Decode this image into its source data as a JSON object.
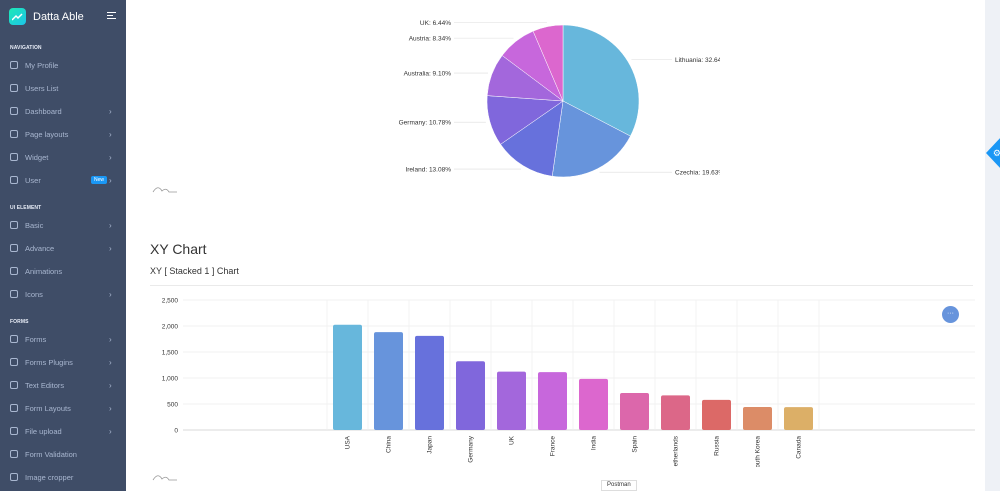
{
  "sidebar": {
    "brand": "Datta Able",
    "sections": [
      {
        "caption": "NAVIGATION",
        "items": [
          {
            "label": "My Profile",
            "icon": "user-icon",
            "chevron": false
          },
          {
            "label": "Users List",
            "icon": "users-icon",
            "chevron": false
          },
          {
            "label": "Dashboard",
            "icon": "home-icon",
            "chevron": true
          },
          {
            "label": "Page layouts",
            "icon": "layout-icon",
            "chevron": true
          },
          {
            "label": "Widget",
            "icon": "layers-icon",
            "chevron": true
          },
          {
            "label": "User",
            "icon": "users-icon",
            "chevron": true,
            "badge": "New"
          }
        ]
      },
      {
        "caption": "UI ELEMENT",
        "items": [
          {
            "label": "Basic",
            "icon": "box-icon",
            "chevron": true
          },
          {
            "label": "Advance",
            "icon": "gitlab-icon",
            "chevron": true
          },
          {
            "label": "Animations",
            "icon": "aperture-icon",
            "chevron": false
          },
          {
            "label": "Icons",
            "icon": "feather-icon",
            "chevron": true
          }
        ]
      },
      {
        "caption": "FORMS",
        "items": [
          {
            "label": "Forms",
            "icon": "file-text-icon",
            "chevron": true
          },
          {
            "label": "Forms Plugins",
            "icon": "file-text-icon",
            "chevron": true
          },
          {
            "label": "Text Editors",
            "icon": "file-text-icon",
            "chevron": true
          },
          {
            "label": "Form Layouts",
            "icon": "file-text-icon",
            "chevron": true
          },
          {
            "label": "File upload",
            "icon": "file-text-icon",
            "chevron": true
          },
          {
            "label": "Form Validation",
            "icon": "grid-icon",
            "chevron": false
          },
          {
            "label": "Image cropper",
            "icon": "scissors-icon",
            "chevron": false
          }
        ]
      }
    ]
  },
  "main": {
    "section_title": "XY Chart",
    "card_title": "XY [ Stacked 1 ] Chart",
    "tooltip": "Postman"
  },
  "chart_data": [
    {
      "type": "pie",
      "slices": [
        {
          "label": "Lithuania",
          "value": 32.64,
          "color": "#67b7dc"
        },
        {
          "label": "Czechia",
          "value": 19.63,
          "color": "#6794dc"
        },
        {
          "label": "Ireland",
          "value": 13.08,
          "color": "#6771dc"
        },
        {
          "label": "Germany",
          "value": 10.78,
          "color": "#8067dc"
        },
        {
          "label": "Australia",
          "value": 9.1,
          "color": "#a367dc"
        },
        {
          "label": "Austria",
          "value": 8.34,
          "color": "#c767dc"
        },
        {
          "label": "UK",
          "value": 6.44,
          "color": "#dc67ce"
        }
      ]
    },
    {
      "type": "bar",
      "categories": [
        "USA",
        "China",
        "Japan",
        "Germany",
        "UK",
        "France",
        "India",
        "Spain",
        "Netherlands",
        "Russia",
        "South Korea",
        "Canada"
      ],
      "values": [
        2025,
        1882,
        1809,
        1322,
        1122,
        1114,
        984,
        711,
        665,
        580,
        443,
        441
      ],
      "colors": [
        "#67b7dc",
        "#6794dc",
        "#6771dc",
        "#8067dc",
        "#a367dc",
        "#c767dc",
        "#dc67ce",
        "#dc67ab",
        "#dc6788",
        "#dc6967",
        "#dc8c67",
        "#dcaf67"
      ],
      "yticks": [
        "0",
        "500",
        "1,000",
        "1,500",
        "2,000",
        "2,500"
      ],
      "ylim": [
        0,
        2500
      ],
      "grid": true
    }
  ]
}
